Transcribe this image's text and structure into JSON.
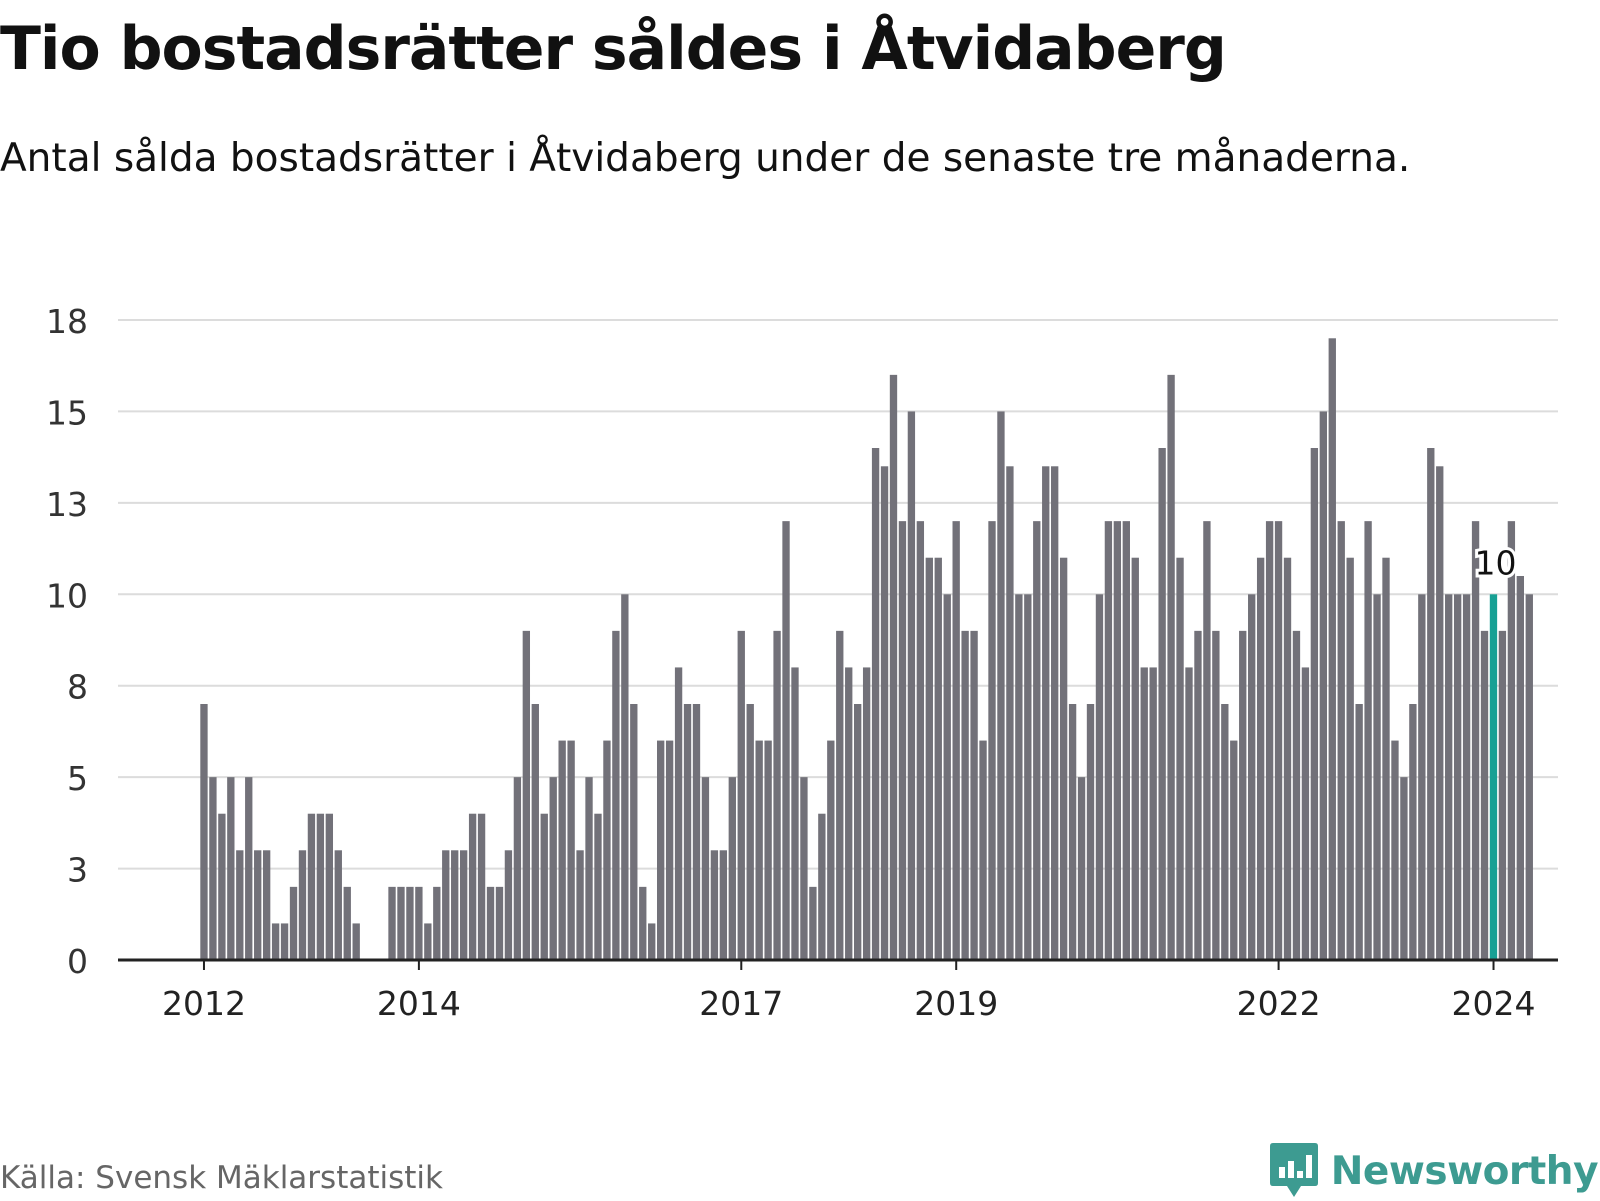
{
  "title": "Tio bostadsrätter såldes i Åtvidaberg",
  "subtitle": "Antal sålda bostadsrätter i Åtvidaberg under de senaste tre månaderna.",
  "source": "Källa: Svensk Mäklarstatistik",
  "brand": {
    "name": "Newsworthy",
    "icon": "newsworthy-logo-icon"
  },
  "colors": {
    "bar": "#727179",
    "highlight": "#17a094",
    "grid": "#dcdcdc",
    "axis": "#222222",
    "brand": "#3d9b91"
  },
  "chart_data": {
    "type": "bar",
    "title": "Tio bostadsrätter såldes i Åtvidaberg",
    "xlabel": "",
    "ylabel": "",
    "ylim": [
      0,
      17.5
    ],
    "grid": true,
    "legend": "none",
    "y_ticks": [
      0,
      2.5,
      5,
      7.5,
      10,
      12.5,
      15,
      17.5
    ],
    "y_tick_labels": [
      "0",
      "3",
      "5",
      "8",
      "10",
      "13",
      "15",
      "18"
    ],
    "x_range": [
      2011.2,
      2024.6
    ],
    "x_ticks": [
      2012,
      2014,
      2017,
      2019,
      2022,
      2024
    ],
    "x_tick_labels": [
      "2012",
      "2014",
      "2017",
      "2019",
      "2022",
      "2024"
    ],
    "highlight_label": "10",
    "x_start": 2012.0,
    "x_step": 0.08333,
    "values": [
      7,
      5,
      4,
      5,
      3,
      5,
      3,
      3,
      1,
      1,
      2,
      3,
      4,
      4,
      4,
      3,
      2,
      1,
      0,
      0,
      0,
      2,
      2,
      2,
      2,
      1,
      2,
      3,
      3,
      3,
      4,
      4,
      2,
      2,
      3,
      5,
      9,
      7,
      4,
      5,
      6,
      6,
      3,
      5,
      4,
      6,
      9,
      10,
      7,
      2,
      1,
      6,
      6,
      8,
      7,
      7,
      5,
      3,
      3,
      5,
      9,
      7,
      6,
      6,
      9,
      12,
      8,
      5,
      2,
      4,
      6,
      9,
      8,
      7,
      8,
      14,
      13.5,
      16,
      12,
      15,
      12,
      11,
      11,
      10,
      12,
      9,
      9,
      6,
      12,
      15,
      13.5,
      10,
      10,
      12,
      13.5,
      13.5,
      11,
      7,
      5,
      7,
      10,
      12,
      12,
      12,
      11,
      8,
      8,
      14,
      16,
      11,
      8,
      9,
      12,
      9,
      7,
      6,
      9,
      10,
      11,
      12,
      12,
      11,
      9,
      8,
      14,
      15,
      17,
      12,
      11,
      7,
      12,
      10,
      11,
      6,
      5,
      7,
      10,
      14,
      13.5,
      10,
      10,
      10,
      12,
      9,
      10,
      9,
      12,
      10.5,
      10
    ],
    "highlight_index": 144
  }
}
